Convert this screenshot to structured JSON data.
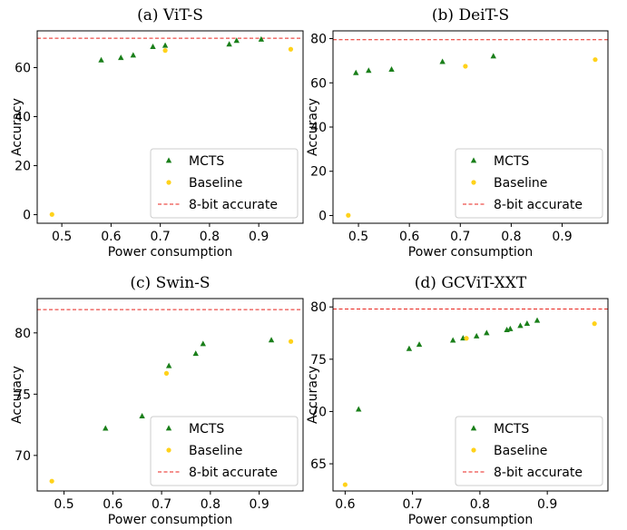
{
  "figure": {
    "colors": {
      "mcts": "#1a7f1a",
      "baseline": "#ffd21a",
      "reference": "#e8231c",
      "axis": "#000000"
    }
  },
  "chart_data": [
    {
      "type": "scatter",
      "title": "(a) ViT-S",
      "xlabel": "Power consumption",
      "ylabel": "Accuracy",
      "xlim": [
        0.45,
        0.99
      ],
      "ylim": [
        -3.5,
        75
      ],
      "xticks": [
        0.5,
        0.6,
        0.7,
        0.8,
        0.9
      ],
      "yticks": [
        0,
        20,
        40,
        60
      ],
      "legend_position": "lower right",
      "grid": false,
      "series": [
        {
          "name": "MCTS",
          "marker": "triangle",
          "points": [
            [
              0.58,
              63.0
            ],
            [
              0.62,
              64.0
            ],
            [
              0.645,
              65.0
            ],
            [
              0.685,
              68.5
            ],
            [
              0.71,
              69.0
            ],
            [
              0.84,
              69.5
            ],
            [
              0.855,
              71.0
            ],
            [
              0.905,
              71.5
            ]
          ]
        },
        {
          "name": "Baseline",
          "marker": "circle",
          "points": [
            [
              0.48,
              0.1
            ],
            [
              0.71,
              67.0
            ],
            [
              0.965,
              67.5
            ]
          ]
        },
        {
          "name": "8-bit accurate",
          "marker": "hline",
          "y": 72.0
        }
      ]
    },
    {
      "type": "scatter",
      "title": "(b) DeiT-S",
      "xlabel": "Power consumption",
      "ylabel": "Accuracy",
      "xlim": [
        0.45,
        0.99
      ],
      "ylim": [
        -3.5,
        83.5
      ],
      "xticks": [
        0.5,
        0.6,
        0.7,
        0.8,
        0.9
      ],
      "yticks": [
        0,
        20,
        40,
        60,
        80
      ],
      "legend_position": "lower right",
      "grid": false,
      "series": [
        {
          "name": "MCTS",
          "marker": "triangle",
          "points": [
            [
              0.495,
              64.5
            ],
            [
              0.52,
              65.5
            ],
            [
              0.565,
              66.0
            ],
            [
              0.665,
              69.5
            ],
            [
              0.765,
              72.0
            ]
          ]
        },
        {
          "name": "Baseline",
          "marker": "circle",
          "points": [
            [
              0.48,
              0.1
            ],
            [
              0.71,
              67.5
            ],
            [
              0.965,
              70.5
            ]
          ]
        },
        {
          "name": "8-bit accurate",
          "marker": "hline",
          "y": 79.5
        }
      ]
    },
    {
      "type": "scatter",
      "title": "(c) Swin-S",
      "xlabel": "Power consumption",
      "ylabel": "Accuracy",
      "xlim": [
        0.445,
        0.99
      ],
      "ylim": [
        67.1,
        82.8
      ],
      "xticks": [
        0.5,
        0.6,
        0.7,
        0.8,
        0.9
      ],
      "yticks": [
        70,
        75,
        80
      ],
      "legend_position": "lower right",
      "grid": false,
      "series": [
        {
          "name": "MCTS",
          "marker": "triangle",
          "points": [
            [
              0.585,
              72.2
            ],
            [
              0.66,
              73.2
            ],
            [
              0.715,
              77.3
            ],
            [
              0.77,
              78.3
            ],
            [
              0.785,
              79.1
            ],
            [
              0.925,
              79.4
            ]
          ]
        },
        {
          "name": "Baseline",
          "marker": "circle",
          "points": [
            [
              0.475,
              67.9
            ],
            [
              0.71,
              76.7
            ],
            [
              0.965,
              79.3
            ]
          ]
        },
        {
          "name": "8-bit accurate",
          "marker": "hline",
          "y": 81.9
        }
      ]
    },
    {
      "type": "scatter",
      "title": "(d) GCViT-XXT",
      "xlabel": "Power consumption",
      "ylabel": "Accuracy",
      "xlim": [
        0.582,
        0.99
      ],
      "ylim": [
        62.4,
        80.8
      ],
      "xticks": [
        0.6,
        0.7,
        0.8,
        0.9
      ],
      "yticks": [
        65,
        70,
        75,
        80
      ],
      "legend_position": "lower right",
      "grid": false,
      "series": [
        {
          "name": "MCTS",
          "marker": "triangle",
          "points": [
            [
              0.62,
              70.2
            ],
            [
              0.695,
              76.0
            ],
            [
              0.71,
              76.4
            ],
            [
              0.76,
              76.8
            ],
            [
              0.775,
              77.0
            ],
            [
              0.795,
              77.2
            ],
            [
              0.81,
              77.5
            ],
            [
              0.84,
              77.8
            ],
            [
              0.845,
              77.9
            ],
            [
              0.86,
              78.2
            ],
            [
              0.87,
              78.4
            ],
            [
              0.885,
              78.7
            ]
          ]
        },
        {
          "name": "Baseline",
          "marker": "circle",
          "points": [
            [
              0.6,
              63.0
            ],
            [
              0.78,
              77.0
            ],
            [
              0.97,
              78.4
            ]
          ]
        },
        {
          "name": "8-bit accurate",
          "marker": "hline",
          "y": 79.8
        }
      ]
    }
  ]
}
